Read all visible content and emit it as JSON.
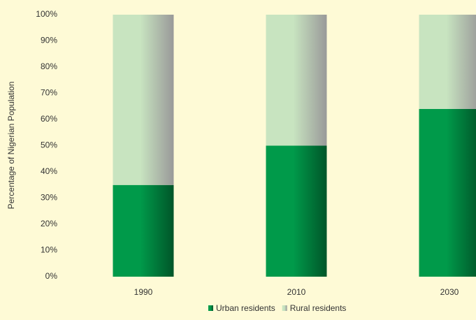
{
  "chart_data": {
    "type": "stacked_bar",
    "y_label": "Percentage of Nigerian Population",
    "categories": [
      "1990",
      "2010",
      "2030"
    ],
    "series": [
      {
        "name": "Urban residents",
        "color": "#009a4a",
        "values": [
          35,
          50,
          64
        ]
      },
      {
        "name": "Rural residents",
        "color": "#c8e4c0",
        "values": [
          65,
          50,
          36
        ]
      }
    ],
    "ylim": [
      0,
      100
    ],
    "yticks": [
      {
        "value": 0,
        "label": "0%"
      },
      {
        "value": 10,
        "label": "10%"
      },
      {
        "value": 20,
        "label": "20%"
      },
      {
        "value": 30,
        "label": "30%"
      },
      {
        "value": 40,
        "label": "40%"
      },
      {
        "value": 50,
        "label": "50%"
      },
      {
        "value": 60,
        "label": "60%"
      },
      {
        "value": 70,
        "label": "70%"
      },
      {
        "value": 80,
        "label": "80%"
      },
      {
        "value": 90,
        "label": "90%"
      },
      {
        "value": 100,
        "label": "100%"
      }
    ],
    "grid": false,
    "legend": "bottom"
  }
}
